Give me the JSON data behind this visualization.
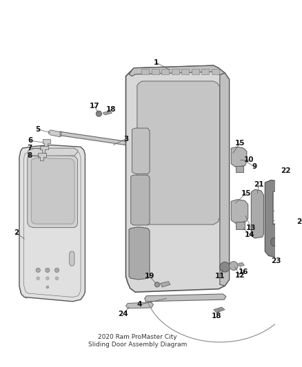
{
  "background_color": "#ffffff",
  "line_color": "#555555",
  "fig_width": 4.38,
  "fig_height": 5.33,
  "dpi": 100,
  "title": "2020 Ram ProMaster City\nSliding Door Assembly Diagram",
  "title_fontsize": 6.5,
  "label_fontsize": 7.5,
  "label_color": "#111111"
}
